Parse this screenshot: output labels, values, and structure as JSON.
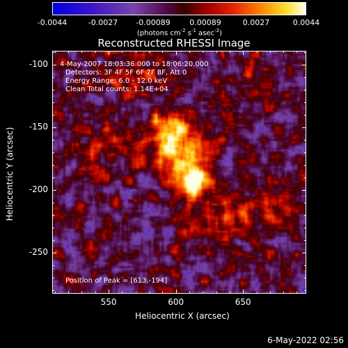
{
  "chart_data": {
    "type": "heatmap",
    "title": "Reconstructed RHESSI Image",
    "xlabel": "Heliocentric X (arcsec)",
    "ylabel": "Heliocentric Y (arcsec)",
    "xlim": [
      508,
      697
    ],
    "ylim": [
      -283,
      -89
    ],
    "x_ticks": [
      550,
      600,
      650
    ],
    "y_ticks": [
      -100,
      -150,
      -200,
      -250
    ],
    "colorbar": {
      "colormap": "blue-purple-red-orange-yellow-white",
      "range": [
        -0.0044,
        0.0044
      ],
      "tick_labels": [
        "-0.0044",
        "-0.0027",
        "-0.00089",
        "0.00089",
        "0.0027",
        "0.0044"
      ],
      "tick_values": [
        -0.0044,
        -0.0027,
        -0.00089,
        0.00089,
        0.0027,
        0.0044
      ],
      "unit_prefix": "(photons cm",
      "unit_exp1": "-2",
      "unit_mid": " s",
      "unit_exp2": "-1",
      "unit_mid2": " asec",
      "unit_exp3": "-2",
      "unit_suffix": ")"
    },
    "annotations": [
      "4-May-2007 18:03:36.000 to 18:06:20.000",
      "Detectors: 3F 4F 5F 6F 7F 8F, Att 0",
      "Energy Range: 6.0 - 12.0 keV",
      "Clean     Total counts: 1.14E+04",
      "Position of Peak = [613,-194]"
    ],
    "peak": {
      "x": 613,
      "y": -194
    },
    "source_blobs": [
      {
        "x": 603,
        "y": -172,
        "amplitude": 0.0044,
        "sigma": 14
      },
      {
        "x": 613,
        "y": -194,
        "amplitude": 0.004,
        "sigma": 9
      },
      {
        "x": 596,
        "y": -150,
        "amplitude": 0.003,
        "sigma": 9
      },
      {
        "x": 545,
        "y": -165,
        "amplitude": 0.0016,
        "sigma": 15
      },
      {
        "x": 640,
        "y": -225,
        "amplitude": 0.0018,
        "sigma": 18
      },
      {
        "x": 680,
        "y": -215,
        "amplitude": 0.0013,
        "sigma": 12
      },
      {
        "x": 575,
        "y": -110,
        "amplitude": 0.0014,
        "sigma": 13
      },
      {
        "x": 660,
        "y": -120,
        "amplitude": 0.001,
        "sigma": 12
      }
    ]
  },
  "footer": {
    "timestamp": "6-May-2022 02:56"
  }
}
